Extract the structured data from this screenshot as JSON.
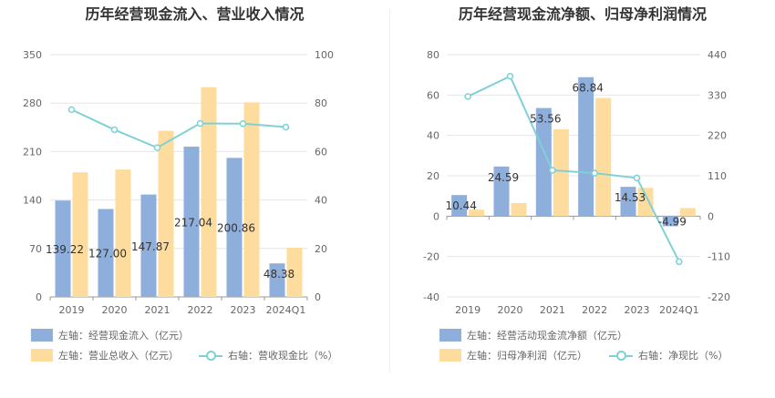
{
  "chart_data": [
    {
      "type": "bar",
      "title": "历年经营现金流入、营业收入情况",
      "categories": [
        "2019",
        "2020",
        "2021",
        "2022",
        "2023",
        "2024Q1"
      ],
      "y_left": {
        "ticks": [
          "0",
          "70",
          "140",
          "210",
          "280",
          "350"
        ],
        "ylim": [
          0,
          350
        ]
      },
      "y_right": {
        "ticks": [
          "0",
          "20",
          "40",
          "60",
          "80",
          "100"
        ],
        "ylim": [
          0,
          100
        ]
      },
      "series": [
        {
          "name": "左轴：经营现金流入（亿元）",
          "type": "bar",
          "axis": "left",
          "color": "#8eaedc",
          "values": [
            139.22,
            127.0,
            147.87,
            217.04,
            200.86,
            48.38
          ],
          "labels": [
            "139.22",
            "127.00",
            "147.87",
            "217.04",
            "200.86",
            "48.38"
          ]
        },
        {
          "name": "左轴：营业总收入（亿元）",
          "type": "bar",
          "axis": "left",
          "color": "#fddc9d",
          "values": [
            180,
            184,
            240,
            303,
            281,
            71
          ]
        },
        {
          "name": "右轴：营收现金比（%）",
          "type": "line",
          "axis": "right",
          "color": "#7fd1d6",
          "values": [
            77.3,
            69.0,
            61.6,
            71.6,
            71.5,
            70.1
          ]
        }
      ],
      "legend": "bottom",
      "grid": true
    },
    {
      "type": "bar",
      "title": "历年经营现金流净额、归母净利润情况",
      "categories": [
        "2019",
        "2020",
        "2021",
        "2022",
        "2023",
        "2024Q1"
      ],
      "y_left": {
        "ticks": [
          "-40",
          "-20",
          "0",
          "20",
          "40",
          "60",
          "80"
        ],
        "ylim": [
          -40,
          80
        ]
      },
      "y_right": {
        "ticks": [
          "-220",
          "-110",
          "0",
          "110",
          "220",
          "330",
          "440"
        ],
        "ylim": [
          -220,
          440
        ]
      },
      "series": [
        {
          "name": "左轴：经营活动现金流净额（亿元）",
          "type": "bar",
          "axis": "left",
          "color": "#8eaedc",
          "values": [
            10.44,
            24.59,
            53.56,
            68.84,
            14.53,
            -4.99
          ],
          "labels": [
            "10.44",
            "24.59",
            "53.56",
            "68.84",
            "14.53",
            "-4.99"
          ]
        },
        {
          "name": "左轴：归母净利润（亿元）",
          "type": "bar",
          "axis": "left",
          "color": "#fddc9d",
          "values": [
            3.2,
            6.5,
            43,
            58.5,
            14,
            4
          ]
        },
        {
          "name": "右轴：净现比（%）",
          "type": "line",
          "axis": "right",
          "color": "#7fd1d6",
          "values": [
            326,
            381,
            125,
            117,
            104,
            -124
          ]
        }
      ],
      "legend": "bottom",
      "grid": true
    }
  ]
}
